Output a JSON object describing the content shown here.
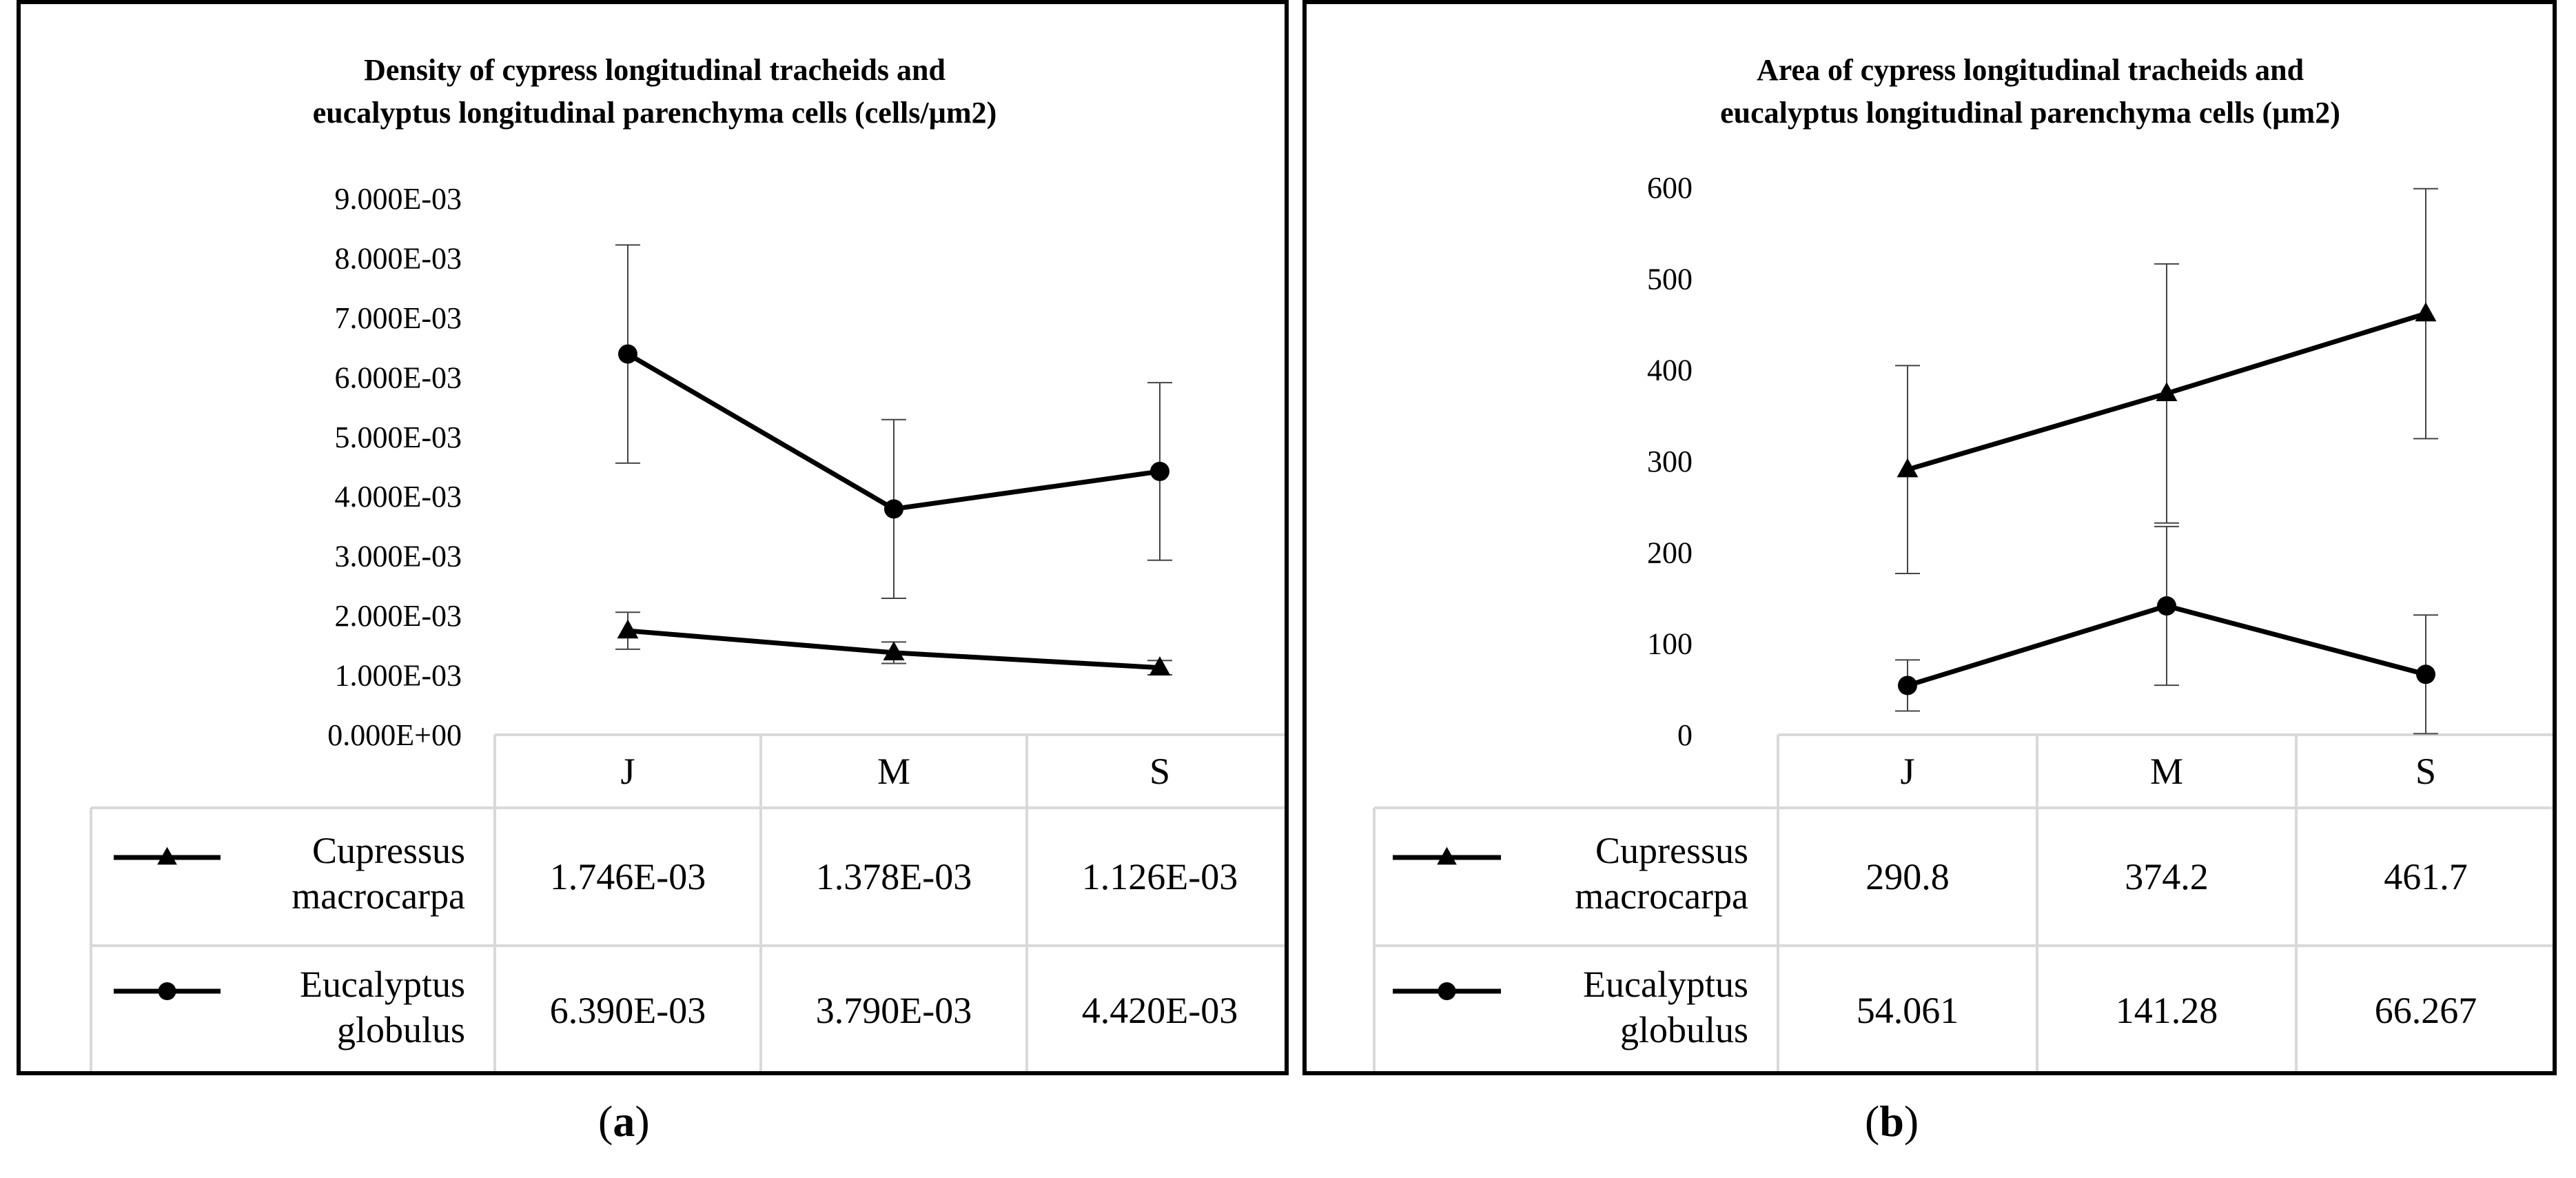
{
  "chart_data": [
    {
      "type": "line",
      "panel": "a",
      "title_line1": "Density of cypress longitudinal tracheids and",
      "title_line2": "eucalyptus longitudinal parenchyma cells (cells/µm2)",
      "categories": [
        "J",
        "M",
        "S"
      ],
      "ylim": [
        0,
        0.009
      ],
      "yticks": [
        "0.000E+00",
        "1.000E-03",
        "2.000E-03",
        "3.000E-03",
        "4.000E-03",
        "5.000E-03",
        "6.000E-03",
        "7.000E-03",
        "8.000E-03",
        "9.000E-03"
      ],
      "series": [
        {
          "name_line1": "Cupressus",
          "name_line2": "macrocarpa",
          "marker": "triangle",
          "values": [
            0.001746,
            0.001378,
            0.001126
          ],
          "labels": [
            "1.746E-03",
            "1.378E-03",
            "1.126E-03"
          ],
          "errors": [
            0.00031,
            0.00018,
            0.00012
          ]
        },
        {
          "name_line1": "Eucalyptus",
          "name_line2": "globulus",
          "marker": "circle",
          "values": [
            0.00639,
            0.00379,
            0.00442
          ],
          "labels": [
            "6.390E-03",
            "3.790E-03",
            "4.420E-03"
          ],
          "errors": [
            0.00183,
            0.0015,
            0.00149
          ]
        }
      ],
      "caption": "a"
    },
    {
      "type": "line",
      "panel": "b",
      "title_line1": "Area of cypress longitudinal tracheids and",
      "title_line2": "eucalyptus longitudinal parenchyma cells (µm2)",
      "categories": [
        "J",
        "M",
        "S"
      ],
      "ylim": [
        0,
        600
      ],
      "yticks": [
        "0",
        "100",
        "200",
        "300",
        "400",
        "500",
        "600"
      ],
      "series": [
        {
          "name_line1": "Cupressus",
          "name_line2": "macrocarpa",
          "marker": "triangle",
          "values": [
            290.8,
            374.2,
            461.7
          ],
          "labels": [
            "290.8",
            "374.2",
            "461.7"
          ],
          "errors": [
            114,
            142,
            137
          ]
        },
        {
          "name_line1": "Eucalyptus",
          "name_line2": "globulus",
          "marker": "circle",
          "values": [
            54.061,
            141.28,
            66.267
          ],
          "labels": [
            "54.061",
            "141.28",
            "66.267"
          ],
          "errors": [
            28,
            87,
            65
          ]
        }
      ],
      "caption": "b"
    }
  ]
}
